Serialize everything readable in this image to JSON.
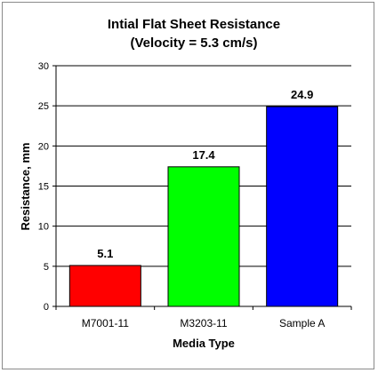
{
  "chart_data": {
    "type": "bar",
    "title": "Intial Flat Sheet Resistance",
    "subtitle": "(Velocity = 5.3 cm/s)",
    "xlabel": "Media Type",
    "ylabel": "Resistance, mm",
    "categories": [
      "M7001-11",
      "M3203-11",
      "Sample A"
    ],
    "values": [
      5.1,
      17.4,
      24.9
    ],
    "data_labels": [
      "5.1",
      "17.4",
      "24.9"
    ],
    "colors": [
      "#ff0000",
      "#00ff00",
      "#0000ff"
    ],
    "ylim": [
      0,
      30
    ],
    "yticks": [
      0,
      5,
      10,
      15,
      20,
      25,
      30
    ],
    "ytick_labels": [
      "0",
      "5",
      "10",
      "15",
      "20",
      "25",
      "30"
    ],
    "grid": true,
    "legend": "none"
  }
}
